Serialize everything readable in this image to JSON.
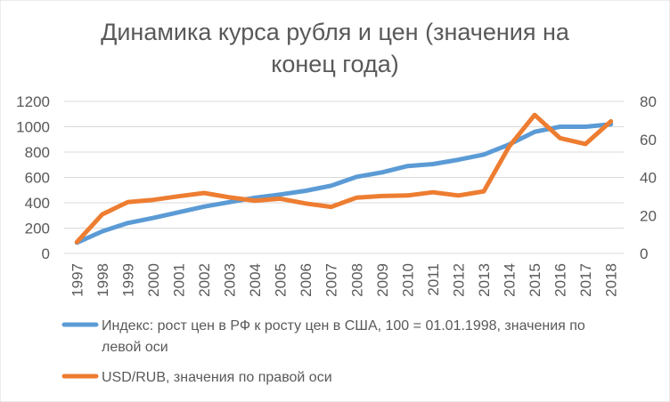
{
  "chart_data": {
    "type": "line",
    "title": [
      "Динамика курса рубля и цен (значения на",
      "конец года)"
    ],
    "categories": [
      "1997",
      "1998",
      "1999",
      "2000",
      "2001",
      "2002",
      "2003",
      "2004",
      "2005",
      "2006",
      "2007",
      "2008",
      "2009",
      "2010",
      "2011",
      "2012",
      "2013",
      "2014",
      "2015",
      "2016",
      "2017",
      "2018"
    ],
    "y_left": {
      "ticks": [
        "0",
        "200",
        "400",
        "600",
        "800",
        "1000",
        "1200"
      ],
      "lim": [
        0,
        1200
      ]
    },
    "y_right": {
      "ticks": [
        "0",
        "20",
        "40",
        "60",
        "80"
      ],
      "lim": [
        0,
        80
      ]
    },
    "grid": true,
    "legend_position": "bottom",
    "series": [
      {
        "name": "Индекс: рост цен в РФ к росту цен в США, 100 = 01.01.1998, значения по левой оси",
        "legend_lines": [
          "Индекс: рост цен в РФ к росту цен в США, 100 = 01.01.1998, значения по",
          "левой оси"
        ],
        "axis": "left",
        "color": "#5b9bd5",
        "values": [
          85,
          175,
          240,
          280,
          325,
          370,
          405,
          440,
          465,
          495,
          535,
          605,
          640,
          690,
          705,
          740,
          780,
          860,
          960,
          1000,
          1000,
          1020
        ]
      },
      {
        "name": "USD/RUB, значения по правой оси",
        "legend_lines": [
          "USD/RUB, значения по правой оси"
        ],
        "axis": "right",
        "color": "#ed7d31",
        "values": [
          6,
          20.6,
          27,
          28.2,
          30.1,
          31.8,
          29.5,
          27.8,
          28.8,
          26.3,
          24.5,
          29.4,
          30.2,
          30.5,
          32.2,
          30.5,
          32.7,
          56.3,
          72.9,
          60.7,
          57.6,
          69.5
        ]
      }
    ]
  }
}
